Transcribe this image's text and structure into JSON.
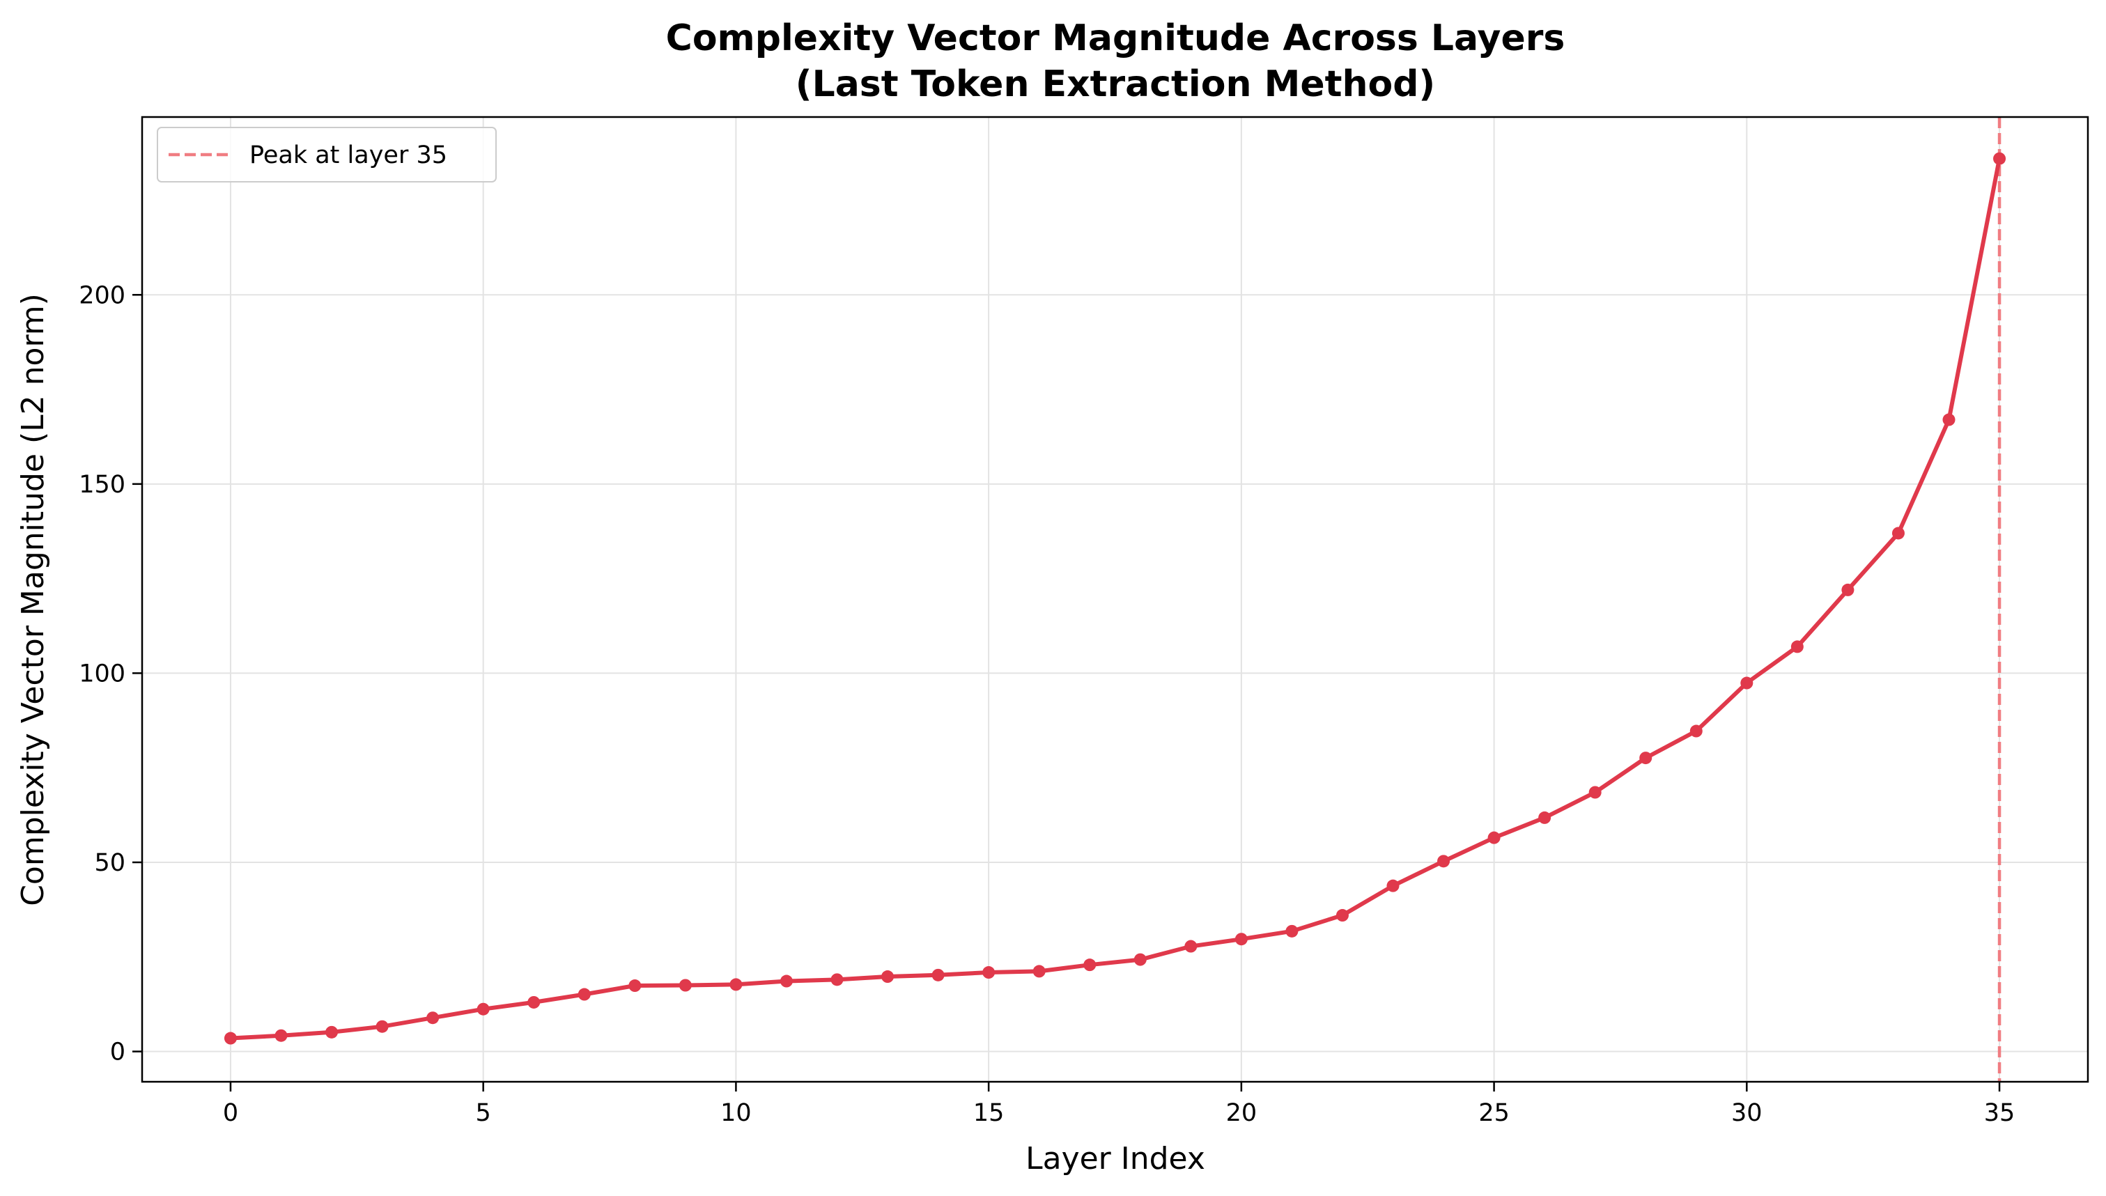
{
  "chart_data": {
    "type": "line",
    "title_line1": "Complexity Vector Magnitude Across Layers",
    "title_line2": "(Last Token Extraction Method)",
    "xlabel": "Layer Index",
    "ylabel": "Complexity Vector Magnitude (L2 norm)",
    "xlim": [
      -1.75,
      36.75
    ],
    "ylim": [
      -8,
      247
    ],
    "x_ticks": [
      0,
      5,
      10,
      15,
      20,
      25,
      30,
      35
    ],
    "y_ticks": [
      0,
      50,
      100,
      150,
      200
    ],
    "grid": true,
    "series": [
      {
        "color": "#e0394b",
        "x": [
          0,
          1,
          2,
          3,
          4,
          5,
          6,
          7,
          8,
          9,
          10,
          11,
          12,
          13,
          14,
          15,
          16,
          17,
          18,
          19,
          20,
          21,
          22,
          23,
          24,
          25,
          26,
          27,
          28,
          29,
          30,
          31,
          32,
          33,
          34,
          35
        ],
        "values": [
          3.5,
          4.2,
          5.1,
          6.6,
          8.9,
          11.2,
          13.0,
          15.1,
          17.4,
          17.5,
          17.7,
          18.6,
          19.0,
          19.8,
          20.2,
          20.9,
          21.2,
          22.9,
          24.3,
          27.8,
          29.7,
          31.8,
          36.0,
          43.8,
          50.3,
          56.5,
          61.8,
          68.5,
          77.6,
          84.7,
          97.4,
          107.0,
          122.0,
          137.0,
          167.0,
          236.0
        ]
      }
    ],
    "reference_line": {
      "x": 35,
      "color": "#f07d82",
      "style": "dashed",
      "label": "Peak at layer 35"
    },
    "legend": {
      "placement": "top-left",
      "entries": [
        "Peak at layer 35"
      ]
    }
  }
}
